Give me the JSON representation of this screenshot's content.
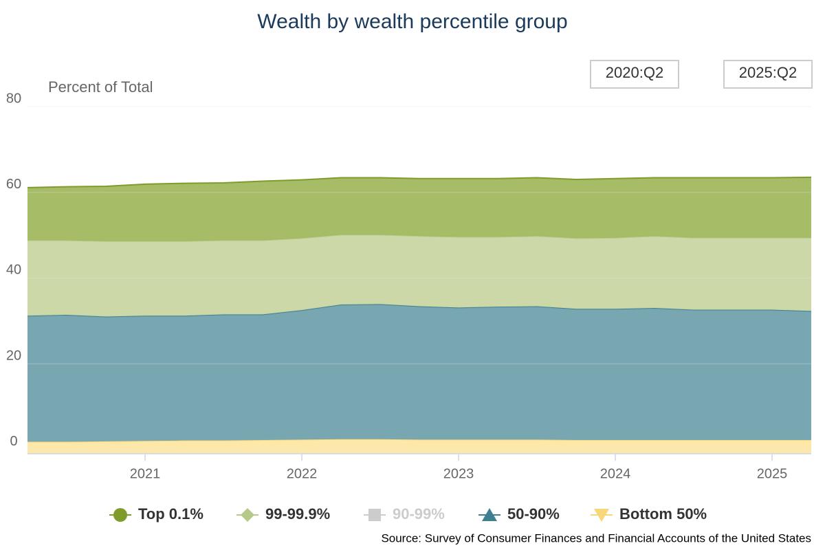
{
  "chart_data": {
    "type": "stacked_area",
    "title": "Wealth by wealth percentile group",
    "y_axis_label": "Percent of Total",
    "source": "Source: Survey of Consumer Finances and Financial Accounts of the United States",
    "range_start": "2020:Q2",
    "range_end": "2025:Q2",
    "x": [
      2020.25,
      2020.5,
      2020.75,
      2021,
      2021.25,
      2021.5,
      2021.75,
      2022,
      2022.25,
      2022.5,
      2022.75,
      2023,
      2023.25,
      2023.5,
      2023.75,
      2024,
      2024.25,
      2024.5,
      2024.75,
      2025,
      2025.25
    ],
    "xlim": [
      2020.25,
      2025.25
    ],
    "xticks": [
      2021,
      2022,
      2023,
      2024,
      2025
    ],
    "ylim": [
      -1,
      80
    ],
    "yticks": [
      0,
      20,
      40,
      60,
      80
    ],
    "grid": true,
    "legend": "bottom",
    "series": [
      {
        "name": "Top 0.1%",
        "color": "#7f9c2b",
        "fill": "#a2b85e",
        "visible": true,
        "values": [
          12.3,
          12.5,
          12.8,
          13.3,
          13.5,
          13.4,
          13.8,
          13.6,
          13.3,
          13.3,
          13.4,
          13.6,
          13.6,
          13.6,
          13.7,
          13.8,
          13.6,
          14.0,
          14.0,
          14.0,
          14.1
        ]
      },
      {
        "name": "99-99.9%",
        "color": "#b5c98a",
        "fill": "#c9d6a3",
        "visible": true,
        "values": [
          17.6,
          17.4,
          17.6,
          17.4,
          17.4,
          17.3,
          17.3,
          16.8,
          16.3,
          16.2,
          16.4,
          16.5,
          16.3,
          16.4,
          16.5,
          16.6,
          16.8,
          16.8,
          16.8,
          16.8,
          17.1
        ]
      },
      {
        "name": "90-99%",
        "color": "#cccccc",
        "visible": false
      },
      {
        "name": "50-90%",
        "color": "#3e7f90",
        "fill": "#71a2ae",
        "visible": true,
        "values": [
          29.4,
          29.6,
          29.1,
          29.2,
          29.1,
          29.4,
          29.3,
          30.2,
          31.4,
          31.5,
          31.1,
          30.8,
          31.0,
          31.1,
          30.6,
          30.6,
          30.8,
          30.4,
          30.4,
          30.4,
          30.1
        ]
      },
      {
        "name": "Bottom 50%",
        "color": "#f6d77a",
        "fill": "#fde6a4",
        "visible": true,
        "values": [
          1.8,
          1.8,
          1.9,
          2.0,
          2.1,
          2.1,
          2.2,
          2.3,
          2.4,
          2.4,
          2.3,
          2.3,
          2.3,
          2.3,
          2.2,
          2.2,
          2.2,
          2.2,
          2.2,
          2.2,
          2.2
        ]
      }
    ]
  }
}
